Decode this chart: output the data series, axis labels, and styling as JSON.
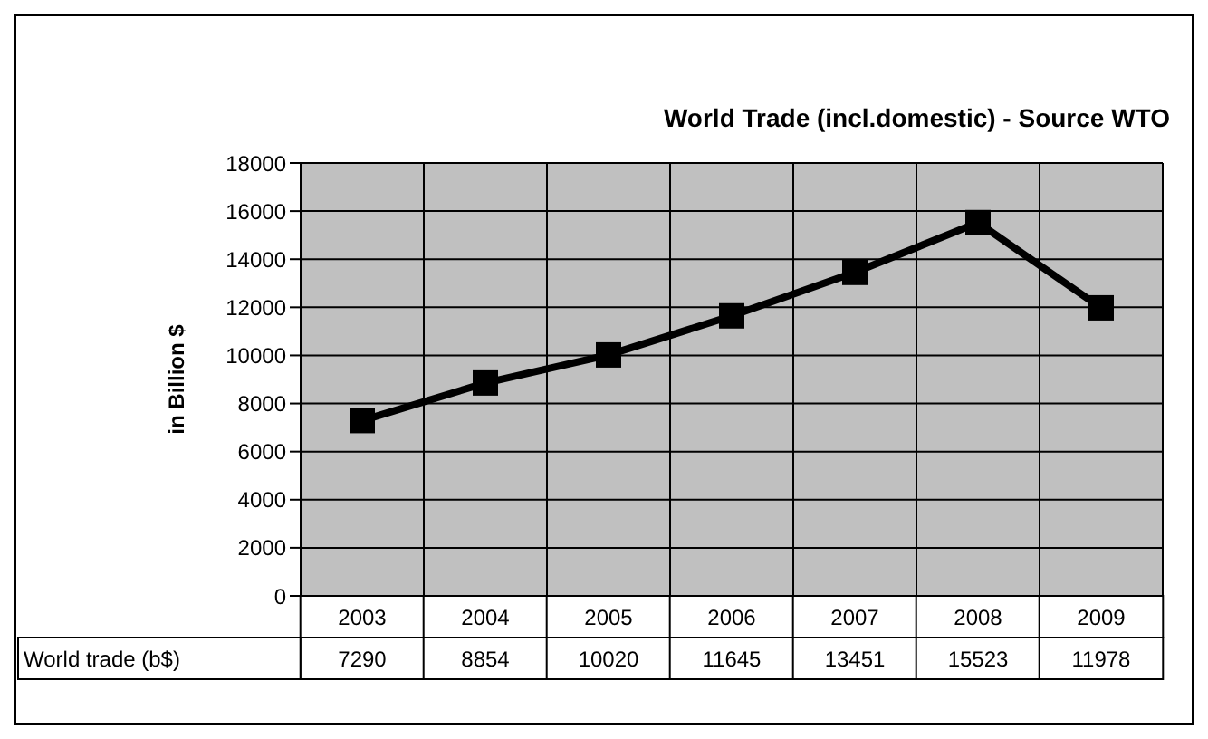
{
  "chart_data": {
    "type": "line",
    "title": "World Trade (incl.domestic) - Source WTO",
    "ylabel": "in Billion $",
    "categories": [
      "2003",
      "2004",
      "2005",
      "2006",
      "2007",
      "2008",
      "2009"
    ],
    "series": [
      {
        "name": "World trade (b$)",
        "color": "#000000",
        "values": [
          7290,
          8854,
          10020,
          11645,
          13451,
          15523,
          11978
        ]
      }
    ],
    "ylim": [
      0,
      18000
    ],
    "yticks": [
      0,
      2000,
      4000,
      6000,
      8000,
      10000,
      12000,
      14000,
      16000,
      18000
    ],
    "grid": true,
    "legend": false,
    "marker": "square",
    "line_style": "solid",
    "data_labels": true
  }
}
